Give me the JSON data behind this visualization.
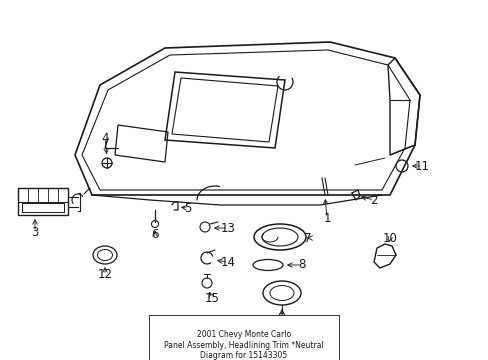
{
  "bg_color": "#ffffff",
  "line_color": "#1a1a1a",
  "fig_width": 4.89,
  "fig_height": 3.6,
  "dpi": 100,
  "title_lines": [
    "2001 Chevy Monte Carlo",
    "Panel Assembly, Headlining Trim *Neutral",
    "Diagram for 15143305"
  ]
}
